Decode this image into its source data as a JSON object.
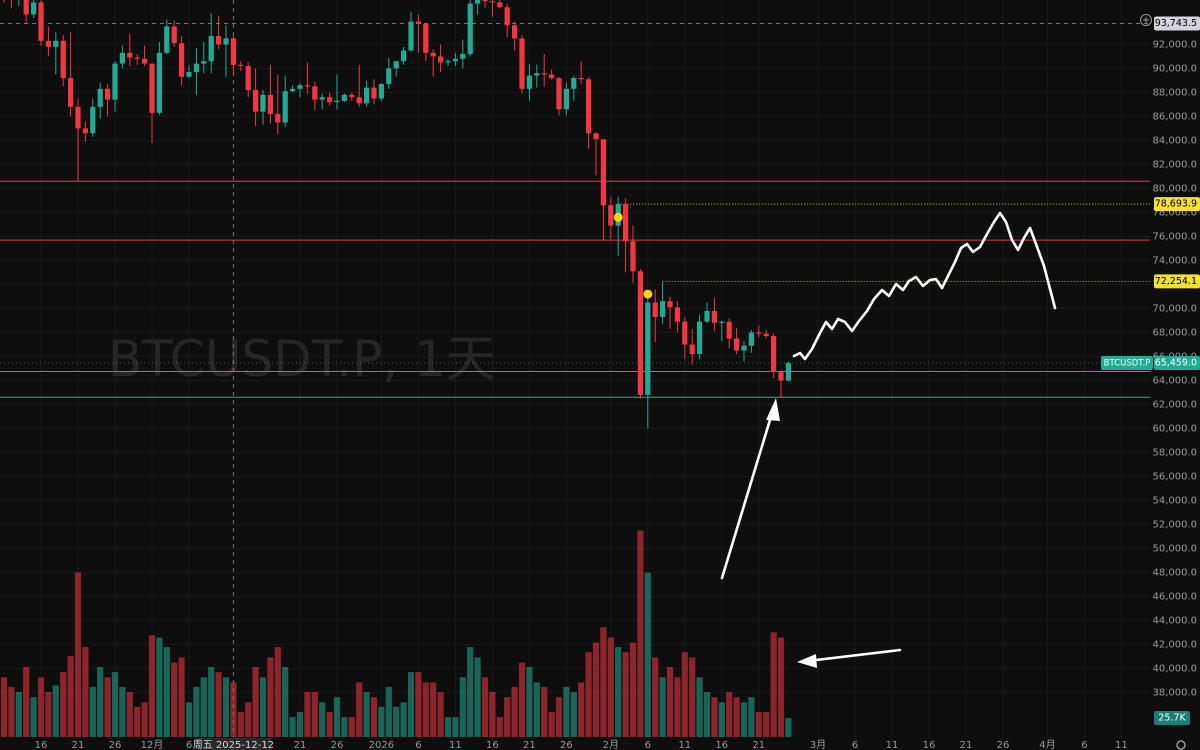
{
  "chart_data": {
    "type": "candlestick",
    "watermark": "BTCUSDT.P, 1天",
    "symbol": "BTCUSDT.P",
    "x": [
      "2025-11-11",
      "2025-11-12",
      "2025-11-13",
      "2025-11-14",
      "2025-11-15",
      "2025-11-16",
      "2025-11-17",
      "2025-11-18",
      "2025-11-19",
      "2025-11-20",
      "2025-11-21",
      "2025-11-22",
      "2025-11-23",
      "2025-11-24",
      "2025-11-25",
      "2025-11-26",
      "2025-11-27",
      "2025-11-28",
      "2025-11-29",
      "2025-11-30",
      "2025-12-01",
      "2025-12-02",
      "2025-12-03",
      "2025-12-04",
      "2025-12-05",
      "2025-12-06",
      "2025-12-07",
      "2025-12-08",
      "2025-12-09",
      "2025-12-10",
      "2025-12-11",
      "2025-12-12",
      "2025-12-13",
      "2025-12-14",
      "2025-12-15",
      "2025-12-16",
      "2025-12-17",
      "2025-12-18",
      "2025-12-19",
      "2025-12-20",
      "2025-12-21",
      "2025-12-22",
      "2025-12-23",
      "2025-12-24",
      "2025-12-25",
      "2025-12-26",
      "2025-12-27",
      "2025-12-28",
      "2025-12-29",
      "2025-12-30",
      "2025-12-31",
      "2026-01-01",
      "2026-01-02",
      "2026-01-03",
      "2026-01-04",
      "2026-01-05",
      "2026-01-06",
      "2026-01-07",
      "2026-01-08",
      "2026-01-09",
      "2026-01-10",
      "2026-01-11",
      "2026-01-12",
      "2026-01-13",
      "2026-01-14",
      "2026-01-15",
      "2026-01-16",
      "2026-01-17",
      "2026-01-18",
      "2026-01-19",
      "2026-01-20",
      "2026-01-21",
      "2026-01-22",
      "2026-01-23",
      "2026-01-24",
      "2026-01-25",
      "2026-01-26",
      "2026-01-27",
      "2026-01-28",
      "2026-01-29",
      "2026-01-30",
      "2026-01-31",
      "2026-02-01",
      "2026-02-02",
      "2026-02-03",
      "2026-02-04",
      "2026-02-05",
      "2026-02-06",
      "2026-02-07",
      "2026-02-08",
      "2026-02-09",
      "2026-02-10",
      "2026-02-11",
      "2026-02-12",
      "2026-02-13",
      "2026-02-14",
      "2026-02-15",
      "2026-02-16",
      "2026-02-17",
      "2026-02-18",
      "2026-02-19",
      "2026-02-20",
      "2026-02-21",
      "2026-02-22",
      "2026-02-23",
      "2026-02-24",
      "2026-02-25"
    ],
    "open": [
      98000,
      96500,
      95800,
      96800,
      94500,
      95500,
      92300,
      91800,
      92300,
      89200,
      86800,
      85000,
      84600,
      86800,
      88300,
      87400,
      90400,
      91300,
      90900,
      90800,
      90400,
      86300,
      91300,
      93500,
      92100,
      89300,
      89700,
      90400,
      90600,
      92700,
      92000,
      92500,
      90300,
      90200,
      88200,
      86400,
      87800,
      86200,
      85500,
      88100,
      88300,
      88600,
      88500,
      87400,
      87600,
      87200,
      87300,
      87800,
      87600,
      87100,
      88400,
      87500,
      88700,
      90000,
      90600,
      91500,
      93900,
      93700,
      91300,
      91000,
      90500,
      90600,
      90800,
      91200,
      95400,
      96900,
      95600,
      95500,
      95100,
      93600,
      92500,
      88300,
      89400,
      89600,
      89500,
      89200,
      86600,
      88300,
      89200,
      89100,
      84600,
      84100,
      78600,
      76900,
      78700,
      75600,
      73100,
      62800,
      70500,
      69300,
      70600,
      70100,
      68900,
      67000,
      66200,
      68900,
      69800,
      68800,
      68900,
      67500,
      66500,
      66900,
      68000,
      67900,
      67700,
      64700,
      64000
    ],
    "high": [
      99000,
      97500,
      98000,
      97000,
      96000,
      95800,
      93500,
      93000,
      92800,
      93000,
      87500,
      85600,
      87500,
      88800,
      88700,
      90600,
      91900,
      92900,
      91200,
      91900,
      90400,
      92200,
      94100,
      94000,
      92700,
      90300,
      91700,
      92200,
      94600,
      94400,
      93600,
      92800,
      90600,
      90500,
      90000,
      88200,
      90300,
      89500,
      89400,
      88600,
      88800,
      90500,
      88900,
      87900,
      88000,
      89500,
      87900,
      88000,
      90300,
      89000,
      89100,
      88800,
      90900,
      90600,
      91800,
      94700,
      94500,
      93800,
      91600,
      92000,
      90800,
      91300,
      92400,
      96000,
      97900,
      97200,
      95900,
      95700,
      95400,
      93900,
      92800,
      90400,
      90300,
      91200,
      89900,
      89300,
      88800,
      89400,
      90600,
      89300,
      84700,
      84100,
      79300,
      79300,
      79200,
      76900,
      73300,
      71500,
      71600,
      72200,
      71000,
      70600,
      69300,
      68300,
      69500,
      70500,
      70900,
      69000,
      69200,
      68400,
      67300,
      68200,
      68600,
      68200,
      67900,
      64900,
      65600
    ],
    "low": [
      95500,
      95000,
      95200,
      93800,
      94200,
      91900,
      91000,
      89500,
      88500,
      86000,
      80600,
      83900,
      84300,
      85800,
      86000,
      86400,
      90000,
      90200,
      90300,
      90200,
      83800,
      86100,
      91200,
      91800,
      88600,
      89200,
      87800,
      89600,
      89600,
      91600,
      89300,
      89500,
      89800,
      87600,
      85200,
      85300,
      85400,
      84500,
      85100,
      88000,
      87600,
      87900,
      86500,
      86600,
      86900,
      86600,
      87200,
      87300,
      86800,
      86800,
      87000,
      87300,
      88300,
      89300,
      90300,
      91400,
      91300,
      90600,
      89300,
      89700,
      90200,
      90200,
      90000,
      91000,
      94500,
      95000,
      94300,
      95000,
      92600,
      91500,
      87900,
      87300,
      88400,
      88500,
      89100,
      86100,
      86100,
      87300,
      88700,
      83300,
      81100,
      75700,
      75800,
      74400,
      73000,
      72100,
      62500,
      60000,
      67200,
      68700,
      68300,
      68000,
      65800,
      65300,
      65800,
      68800,
      68100,
      67300,
      66700,
      66200,
      65600,
      66300,
      67600,
      67500,
      64200,
      62600,
      63900
    ],
    "close": [
      96500,
      95800,
      96800,
      94500,
      95500,
      92300,
      91800,
      92300,
      89200,
      86800,
      85000,
      84600,
      86800,
      88300,
      87400,
      90400,
      91300,
      90900,
      90800,
      90400,
      86300,
      91300,
      93500,
      92100,
      89300,
      89700,
      90400,
      90600,
      92700,
      92000,
      92500,
      90300,
      90200,
      88200,
      86400,
      87800,
      86200,
      85500,
      88100,
      88300,
      88600,
      88500,
      87400,
      87600,
      87200,
      87300,
      87800,
      87600,
      87100,
      88400,
      87500,
      88700,
      90000,
      90600,
      91500,
      93900,
      93700,
      91300,
      91000,
      90500,
      90600,
      90800,
      91200,
      95400,
      96900,
      95600,
      95500,
      95100,
      93600,
      92500,
      88300,
      89400,
      89600,
      89500,
      89200,
      86600,
      88300,
      89200,
      89100,
      84600,
      84100,
      78600,
      76900,
      78700,
      75600,
      73100,
      62800,
      70500,
      69300,
      70600,
      70100,
      68900,
      67000,
      66200,
      68900,
      69800,
      68800,
      68900,
      67500,
      66500,
      66900,
      68000,
      67900,
      67700,
      64700,
      64000,
      65459
    ],
    "volume": [
      81,
      68,
      61,
      95,
      54,
      81,
      61,
      70,
      88,
      110,
      223,
      122,
      68,
      95,
      81,
      88,
      68,
      61,
      41,
      47,
      138,
      135,
      122,
      101,
      108,
      47,
      68,
      81,
      95,
      88,
      81,
      74,
      34,
      47,
      95,
      81,
      108,
      122,
      95,
      27,
      34,
      61,
      61,
      47,
      34,
      54,
      27,
      27,
      74,
      61,
      54,
      41,
      68,
      41,
      47,
      88,
      88,
      74,
      74,
      61,
      27,
      27,
      81,
      122,
      108,
      81,
      61,
      27,
      54,
      68,
      101,
      95,
      74,
      68,
      34,
      54,
      68,
      61,
      74,
      115,
      128,
      149,
      135,
      122,
      115,
      128,
      280,
      223,
      108,
      81,
      95,
      81,
      115,
      108,
      81,
      61,
      54,
      47,
      61,
      54,
      47,
      54,
      34,
      34,
      142,
      135,
      25.7
    ],
    "up_color": "#22ab94",
    "down_color": "#f23645",
    "ylim": [
      34300,
      95700
    ],
    "volume_lim": [
      0,
      1000
    ],
    "yticks": [
      {
        "value": 38000,
        "label": "38,000.0"
      },
      {
        "value": 40000,
        "label": "40,000.0"
      },
      {
        "value": 42000,
        "label": "42,000.0"
      },
      {
        "value": 44000,
        "label": "44,000.0"
      },
      {
        "value": 46000,
        "label": "46,000.0"
      },
      {
        "value": 48000,
        "label": "48,000.0"
      },
      {
        "value": 50000,
        "label": "50,000.0"
      },
      {
        "value": 52000,
        "label": "52,000.0"
      },
      {
        "value": 54000,
        "label": "54,000.0"
      },
      {
        "value": 56000,
        "label": "56,000.0"
      },
      {
        "value": 58000,
        "label": "58,000.0"
      },
      {
        "value": 60000,
        "label": "60,000.0"
      },
      {
        "value": 62000,
        "label": "62,000.0"
      },
      {
        "value": 64000,
        "label": "64,000.0"
      },
      {
        "value": 66000,
        "label": "66,000.0"
      },
      {
        "value": 68000,
        "label": "68,000.0"
      },
      {
        "value": 70000,
        "label": "70,000.0"
      },
      {
        "value": 72000,
        "label": "72,000.0"
      },
      {
        "value": 74000,
        "label": "74,000.0"
      },
      {
        "value": 76000,
        "label": "76,000.0"
      },
      {
        "value": 78000,
        "label": "78,000.0"
      },
      {
        "value": 80000,
        "label": "80,000.0"
      },
      {
        "value": 82000,
        "label": "82,000.0"
      },
      {
        "value": 84000,
        "label": "84,000.0"
      },
      {
        "value": 86000,
        "label": "86,000.0"
      },
      {
        "value": 88000,
        "label": "88,000.0"
      },
      {
        "value": 90000,
        "label": "90,000.0"
      },
      {
        "value": 92000,
        "label": "92,000.0"
      }
    ],
    "xticks": [
      {
        "value": "2025-11-16",
        "label": "16"
      },
      {
        "value": "2025-11-21",
        "label": "21"
      },
      {
        "value": "2025-11-26",
        "label": "26"
      },
      {
        "value": "2025-12-01",
        "label": "12月"
      },
      {
        "value": "2025-12-06",
        "label": "6"
      },
      {
        "value": "2025-12-21",
        "label": "21"
      },
      {
        "value": "2025-12-26",
        "label": "26"
      },
      {
        "value": "2026-01-01",
        "label": "2026"
      },
      {
        "value": "2026-01-06",
        "label": "6"
      },
      {
        "value": "2026-01-11",
        "label": "11"
      },
      {
        "value": "2026-01-16",
        "label": "16"
      },
      {
        "value": "2026-01-21",
        "label": "21"
      },
      {
        "value": "2026-01-26",
        "label": "26"
      },
      {
        "value": "2026-02-01",
        "label": "2月"
      },
      {
        "value": "2026-02-06",
        "label": "6"
      },
      {
        "value": "2026-02-11",
        "label": "11"
      },
      {
        "value": "2026-02-16",
        "label": "16"
      },
      {
        "value": "2026-02-21",
        "label": "21"
      },
      {
        "value": "2026-03-01",
        "label": "3月"
      },
      {
        "value": "2026-03-06",
        "label": "6"
      },
      {
        "value": "2026-03-11",
        "label": "11"
      },
      {
        "value": "2026-03-16",
        "label": "16"
      },
      {
        "value": "2026-03-21",
        "label": "21"
      },
      {
        "value": "2026-03-26",
        "label": "26"
      },
      {
        "value": "2026-04-01",
        "label": "4月"
      },
      {
        "value": "2026-04-06",
        "label": "6"
      },
      {
        "value": "2026-04-11",
        "label": "11"
      }
    ],
    "grid": true,
    "crosshair": {
      "date": "2025-12-12",
      "label": "周五 2025-12-12",
      "price": {
        "value": 93743.5,
        "label": "93,743.5"
      }
    },
    "last_price": {
      "value": 65459,
      "label": "65,459.0"
    },
    "last_volume": {
      "value": 25.7,
      "label": "25.7K"
    },
    "levels": [
      {
        "value": 78693.9,
        "label": "78,693.9",
        "from": "2026-02-02"
      },
      {
        "value": 72254.1,
        "label": "72,254.1",
        "from": "2026-02-08"
      }
    ],
    "markers": [
      {
        "date": "2026-02-02",
        "value": 77600
      },
      {
        "date": "2026-02-06",
        "value": 71200
      }
    ],
    "hlines": [
      {
        "value": 80600,
        "color": "#f23645"
      },
      {
        "value": 75700,
        "color": "#f23645"
      },
      {
        "value": 64750,
        "color": "#22ab94"
      },
      {
        "value": 62600,
        "color": "#22ab94"
      }
    ]
  }
}
